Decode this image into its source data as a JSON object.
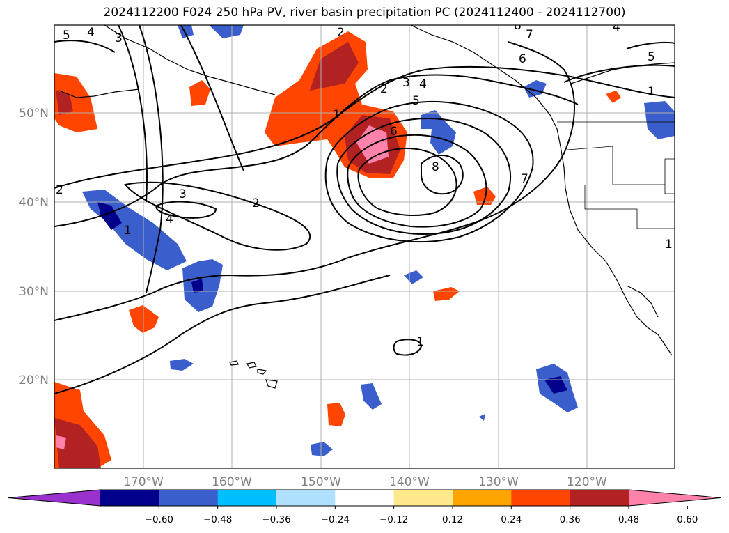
{
  "title": "2024112200 F024 250 hPa PV, river basin precipitation PC (2024112400 - 2024112700)",
  "map": {
    "lon_labels": [
      "170°W",
      "160°W",
      "150°W",
      "140°W",
      "130°W",
      "120°W"
    ],
    "lat_labels": [
      "50°N",
      "40°N",
      "30°N",
      "20°N"
    ],
    "gridlines": true,
    "coastlines": true,
    "country_borders": true
  },
  "pv_contour_labels": [
    "5",
    "4",
    "3",
    "2",
    "3",
    "2",
    "4",
    "1",
    "1",
    "2",
    "3",
    "5",
    "4",
    "6",
    "8",
    "7",
    "6",
    "8",
    "7",
    "5",
    "1",
    "4",
    "1",
    "1",
    "2"
  ],
  "colorbar": {
    "ticks": [
      "−0.60",
      "−0.48",
      "−0.36",
      "−0.24",
      "−0.12",
      "0.12",
      "0.24",
      "0.36",
      "0.48",
      "0.60"
    ],
    "colors": [
      "#9932cc",
      "#00008b",
      "#3a5fcd",
      "#00bfff",
      "#b0e2ff",
      "#ffffff",
      "#ffe98c",
      "#ffa500",
      "#ff4500",
      "#b22222",
      "#ff82ab"
    ],
    "extend": "both"
  }
}
